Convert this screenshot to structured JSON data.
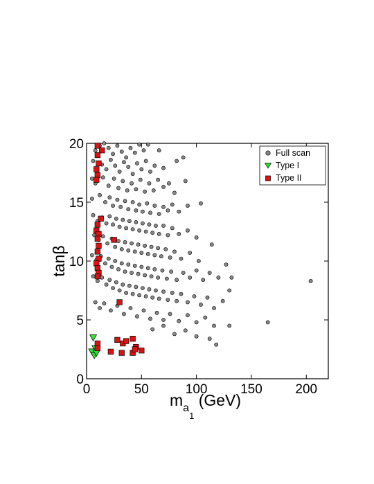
{
  "chart_data": {
    "type": "scatter",
    "xlabel_main": "m",
    "xlabel_sub": "a",
    "xlabel_subsub": "1",
    "xlabel_units": " (GeV)",
    "ylabel": "tanβ",
    "xlim": [
      0,
      220
    ],
    "ylim": [
      0,
      20
    ],
    "xticks": [
      0,
      50,
      100,
      150,
      200
    ],
    "yticks": [
      0,
      5,
      10,
      15,
      20
    ],
    "grid": false,
    "legend_position": "top-right",
    "series": [
      {
        "name": "Full scan",
        "marker": "circle",
        "color": "#888888",
        "points": [
          [
            8,
            19.4
          ],
          [
            12,
            19.8
          ],
          [
            16,
            20
          ],
          [
            20,
            19.6
          ],
          [
            24,
            19.1
          ],
          [
            28,
            19.8
          ],
          [
            32,
            19.3
          ],
          [
            36,
            18.8
          ],
          [
            40,
            19.6
          ],
          [
            44,
            19.2
          ],
          [
            48,
            19.9
          ],
          [
            52,
            19.4
          ],
          [
            56,
            19.9
          ],
          [
            66,
            19.4
          ],
          [
            6,
            18.5
          ],
          [
            14,
            18.2
          ],
          [
            18,
            17.8
          ],
          [
            22,
            18.6
          ],
          [
            26,
            18.1
          ],
          [
            30,
            17.6
          ],
          [
            34,
            18.4
          ],
          [
            38,
            18.0
          ],
          [
            42,
            17.4
          ],
          [
            46,
            18.3
          ],
          [
            50,
            17.8
          ],
          [
            54,
            18.5
          ],
          [
            58,
            17.6
          ],
          [
            62,
            18.1
          ],
          [
            70,
            17.9
          ],
          [
            82,
            18.5
          ],
          [
            88,
            18.8
          ],
          [
            5,
            17.0
          ],
          [
            8,
            16.6
          ],
          [
            15,
            17.1
          ],
          [
            20,
            16.4
          ],
          [
            25,
            17.0
          ],
          [
            29,
            16.2
          ],
          [
            33,
            16.8
          ],
          [
            37,
            16.0
          ],
          [
            41,
            16.6
          ],
          [
            45,
            16.1
          ],
          [
            49,
            16.9
          ],
          [
            53,
            15.9
          ],
          [
            57,
            16.6
          ],
          [
            61,
            16.0
          ],
          [
            65,
            16.9
          ],
          [
            70,
            16.3
          ],
          [
            75,
            16.6
          ],
          [
            80,
            15.8
          ],
          [
            90,
            16.8
          ],
          [
            5,
            15.3
          ],
          [
            12,
            15.6
          ],
          [
            17,
            15.0
          ],
          [
            21,
            15.4
          ],
          [
            24,
            14.7
          ],
          [
            28,
            15.2
          ],
          [
            31,
            14.6
          ],
          [
            35,
            15.1
          ],
          [
            38,
            14.4
          ],
          [
            42,
            15.0
          ],
          [
            45,
            14.3
          ],
          [
            48,
            14.8
          ],
          [
            51,
            14.2
          ],
          [
            55,
            14.9
          ],
          [
            58,
            14.1
          ],
          [
            62,
            14.7
          ],
          [
            66,
            14.0
          ],
          [
            70,
            14.6
          ],
          [
            74,
            14.3
          ],
          [
            78,
            14.8
          ],
          [
            84,
            14.2
          ],
          [
            92,
            14.7
          ],
          [
            104,
            14.9
          ],
          [
            6,
            13.9
          ],
          [
            10,
            13.4
          ],
          [
            14,
            13.7
          ],
          [
            18,
            13.2
          ],
          [
            21,
            13.8
          ],
          [
            24,
            13.1
          ],
          [
            27,
            13.6
          ],
          [
            30,
            12.9
          ],
          [
            33,
            13.5
          ],
          [
            36,
            12.8
          ],
          [
            39,
            13.4
          ],
          [
            42,
            12.7
          ],
          [
            45,
            13.3
          ],
          [
            48,
            12.6
          ],
          [
            51,
            13.2
          ],
          [
            54,
            12.5
          ],
          [
            57,
            13.1
          ],
          [
            60,
            12.4
          ],
          [
            63,
            13.0
          ],
          [
            66,
            12.3
          ],
          [
            70,
            13.0
          ],
          [
            74,
            12.2
          ],
          [
            78,
            12.8
          ],
          [
            84,
            12.3
          ],
          [
            92,
            12.6
          ],
          [
            100,
            12.0
          ],
          [
            7,
            12.2
          ],
          [
            11,
            11.8
          ],
          [
            15,
            12.1
          ],
          [
            19,
            11.5
          ],
          [
            23,
            11.9
          ],
          [
            26,
            11.2
          ],
          [
            29,
            11.7
          ],
          [
            32,
            11.0
          ],
          [
            35,
            11.6
          ],
          [
            38,
            10.9
          ],
          [
            41,
            11.5
          ],
          [
            44,
            10.8
          ],
          [
            47,
            11.4
          ],
          [
            50,
            10.7
          ],
          [
            53,
            11.3
          ],
          [
            56,
            10.6
          ],
          [
            59,
            11.2
          ],
          [
            62,
            10.5
          ],
          [
            65,
            11.1
          ],
          [
            68,
            10.4
          ],
          [
            72,
            11.0
          ],
          [
            76,
            10.3
          ],
          [
            80,
            10.8
          ],
          [
            86,
            10.2
          ],
          [
            94,
            10.7
          ],
          [
            102,
            10.0
          ],
          [
            114,
            11.4
          ],
          [
            5,
            10.5
          ],
          [
            9,
            10.1
          ],
          [
            13,
            10.4
          ],
          [
            17,
            9.8
          ],
          [
            20,
            10.2
          ],
          [
            23,
            9.5
          ],
          [
            26,
            10.0
          ],
          [
            29,
            9.3
          ],
          [
            32,
            9.8
          ],
          [
            35,
            9.1
          ],
          [
            38,
            9.7
          ],
          [
            41,
            9.0
          ],
          [
            44,
            9.6
          ],
          [
            47,
            8.9
          ],
          [
            50,
            9.5
          ],
          [
            53,
            8.8
          ],
          [
            56,
            9.4
          ],
          [
            59,
            8.7
          ],
          [
            62,
            9.3
          ],
          [
            65,
            8.6
          ],
          [
            69,
            9.2
          ],
          [
            73,
            8.5
          ],
          [
            77,
            9.1
          ],
          [
            82,
            8.4
          ],
          [
            88,
            9.0
          ],
          [
            94,
            8.6
          ],
          [
            100,
            9.2
          ],
          [
            106,
            8.4
          ],
          [
            112,
            9.0
          ],
          [
            120,
            8.6
          ],
          [
            127,
            9.7
          ],
          [
            132,
            8.6
          ],
          [
            6,
            8.7
          ],
          [
            10,
            8.3
          ],
          [
            14,
            8.6
          ],
          [
            18,
            8.0
          ],
          [
            21,
            8.4
          ],
          [
            24,
            7.7
          ],
          [
            27,
            8.2
          ],
          [
            30,
            7.5
          ],
          [
            33,
            8.0
          ],
          [
            36,
            7.3
          ],
          [
            39,
            7.9
          ],
          [
            42,
            7.2
          ],
          [
            45,
            7.8
          ],
          [
            48,
            7.1
          ],
          [
            51,
            7.7
          ],
          [
            54,
            7.0
          ],
          [
            57,
            7.6
          ],
          [
            60,
            6.9
          ],
          [
            63,
            7.5
          ],
          [
            66,
            6.8
          ],
          [
            70,
            7.4
          ],
          [
            74,
            6.7
          ],
          [
            78,
            7.3
          ],
          [
            82,
            6.6
          ],
          [
            86,
            7.2
          ],
          [
            92,
            6.5
          ],
          [
            98,
            7.0
          ],
          [
            104,
            6.3
          ],
          [
            110,
            6.9
          ],
          [
            116,
            6.0
          ],
          [
            124,
            6.6
          ],
          [
            130,
            7.5
          ],
          [
            8,
            6.5
          ],
          [
            12,
            6.0
          ],
          [
            16,
            6.4
          ],
          [
            22,
            5.8
          ],
          [
            28,
            6.2
          ],
          [
            34,
            5.5
          ],
          [
            40,
            6.0
          ],
          [
            46,
            5.3
          ],
          [
            52,
            5.8
          ],
          [
            58,
            5.1
          ],
          [
            64,
            5.6
          ],
          [
            70,
            5.0
          ],
          [
            76,
            5.5
          ],
          [
            84,
            4.9
          ],
          [
            92,
            5.4
          ],
          [
            100,
            4.8
          ],
          [
            108,
            5.2
          ],
          [
            116,
            4.5
          ],
          [
            130,
            4.5
          ],
          [
            165,
            4.8
          ],
          [
            60,
            4.2
          ],
          [
            70,
            4.5
          ],
          [
            80,
            3.8
          ],
          [
            90,
            4.1
          ],
          [
            100,
            3.6
          ],
          [
            112,
            3.4
          ],
          [
            118,
            2.9
          ],
          [
            204,
            8.3
          ]
        ]
      },
      {
        "name": "Type I",
        "marker": "triangle-down",
        "color": "#33dd33",
        "points": [
          [
            6,
            3.5
          ],
          [
            8,
            2.6
          ],
          [
            5,
            2.3
          ],
          [
            7,
            2.0
          ],
          [
            9,
            2.2
          ]
        ]
      },
      {
        "name": "Type II",
        "marker": "square",
        "color": "#dd1111",
        "points": [
          [
            10,
            19.8
          ],
          [
            14,
            19.4
          ],
          [
            10,
            19.0
          ],
          [
            11,
            18.3
          ],
          [
            9,
            17.8
          ],
          [
            10,
            17.3
          ],
          [
            9,
            16.9
          ],
          [
            13,
            13.6
          ],
          [
            10,
            13.1
          ],
          [
            9,
            12.6
          ],
          [
            11,
            12.3
          ],
          [
            10,
            11.9
          ],
          [
            11,
            11.3
          ],
          [
            10,
            10.8
          ],
          [
            11,
            10.2
          ],
          [
            9,
            9.8
          ],
          [
            10,
            9.4
          ],
          [
            11,
            9.0
          ],
          [
            10,
            8.7
          ],
          [
            25,
            11.8
          ],
          [
            30,
            6.5
          ],
          [
            10,
            3.0
          ],
          [
            10,
            2.6
          ],
          [
            22,
            2.3
          ],
          [
            28,
            3.3
          ],
          [
            33,
            3.0
          ],
          [
            32,
            2.2
          ],
          [
            36,
            3.2
          ],
          [
            42,
            3.4
          ],
          [
            45,
            2.7
          ],
          [
            50,
            2.4
          ],
          [
            42,
            2.2
          ],
          [
            44,
            2.5
          ]
        ]
      }
    ]
  }
}
